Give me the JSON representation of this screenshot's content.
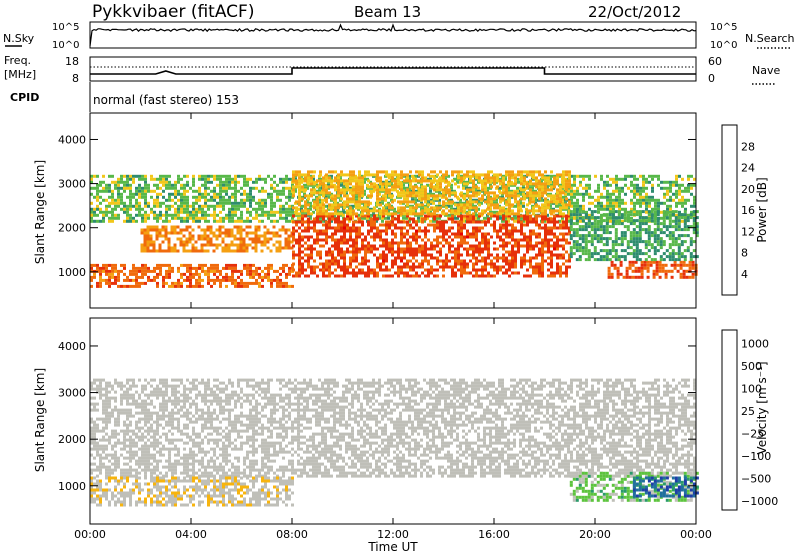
{
  "header": {
    "station": "Pykkvibaer (fitACF)",
    "beam": "Beam 13",
    "date": "22/Oct/2012"
  },
  "aux": {
    "nsky_label": "N.Sky",
    "nsky_ticks": [
      "10^5",
      "10^0"
    ],
    "nsearch_label": "N.Search",
    "freq_label": "Freq.",
    "freq_unit": "[MHz]",
    "freq_ticks": [
      "18",
      "8"
    ],
    "nave_ticks": [
      "60",
      "0"
    ],
    "nave_label": "Nave",
    "cpid_label": "CPID",
    "cpid_text": "normal (fast stereo) 153"
  },
  "colors": {
    "power_scale": [
      "#1414f0",
      "#1c4fa5",
      "#2e8c6e",
      "#58b84a",
      "#f2c71a",
      "#f59f12",
      "#f06a0c",
      "#e6300a",
      "#e60000"
    ],
    "velocity_scale": [
      "#1e3fa8",
      "#216f9e",
      "#2a9a6a",
      "#5cc43d",
      "#bfbfb8",
      "#bfbfb8",
      "#f7b40e",
      "#f58c0c",
      "#f05c0c",
      "#e60000"
    ]
  },
  "chart_data": [
    {
      "type": "heatmap",
      "title": "",
      "xlabel": "Time UT",
      "ylabel": "Slant Range [km]",
      "x_ticks": [
        "00:00",
        "04:00",
        "08:00",
        "12:00",
        "16:00",
        "20:00",
        "00:00"
      ],
      "y_ticks": [
        "1000",
        "2000",
        "3000",
        "4000"
      ],
      "xlim_hours": [
        0,
        24
      ],
      "ylim_km": [
        180,
        4600
      ],
      "colorbar": {
        "label": "Power [dB]",
        "ticks": [
          "4",
          "8",
          "12",
          "16",
          "20",
          "24",
          "28"
        ],
        "range": [
          0,
          30
        ]
      },
      "bands": [
        {
          "t0": 0,
          "t1": 8,
          "r0": 680,
          "r1": 1180,
          "value": 22
        },
        {
          "t0": 2,
          "t1": 8,
          "r0": 1450,
          "r1": 2050,
          "value": 20
        },
        {
          "t0": 0,
          "t1": 24,
          "r0": 2150,
          "r1": 3200,
          "value": 12
        },
        {
          "t0": 8,
          "t1": 19,
          "r0": 900,
          "r1": 2300,
          "value": 24
        },
        {
          "t0": 8,
          "t1": 19,
          "r0": 2300,
          "r1": 3300,
          "value": 17
        },
        {
          "t0": 20.5,
          "t1": 24,
          "r0": 850,
          "r1": 1250,
          "value": 23
        },
        {
          "t0": 19,
          "t1": 24,
          "r0": 1250,
          "r1": 2400,
          "value": 10
        }
      ]
    },
    {
      "type": "heatmap",
      "title": "",
      "xlabel": "Time UT",
      "ylabel": "Slant Range [km]",
      "x_ticks": [
        "00:00",
        "04:00",
        "08:00",
        "12:00",
        "16:00",
        "20:00",
        "00:00"
      ],
      "y_ticks": [
        "1000",
        "2000",
        "3000",
        "4000"
      ],
      "xlim_hours": [
        0,
        24
      ],
      "ylim_km": [
        180,
        4600
      ],
      "colorbar": {
        "label": "Velocity [m s⁻¹]",
        "ticks": [
          "1000",
          "500",
          "100",
          "25",
          "−25",
          "−100",
          "−500",
          "−1000"
        ],
        "range": [
          -1200,
          1200
        ]
      },
      "bands": [
        {
          "t0": 0,
          "t1": 24,
          "r0": 1200,
          "r1": 3300,
          "value": 0
        },
        {
          "t0": 0,
          "t1": 8,
          "r0": 600,
          "r1": 1200,
          "value": -150
        },
        {
          "t0": 19,
          "t1": 24,
          "r0": 700,
          "r1": 1300,
          "value": 300
        },
        {
          "t0": 21.5,
          "t1": 24,
          "r0": 800,
          "r1": 1200,
          "value": 900
        }
      ]
    }
  ]
}
